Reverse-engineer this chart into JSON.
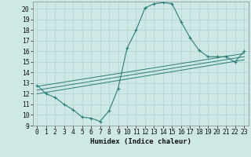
{
  "bg_color": "#cde8e5",
  "line_color": "#2d7d78",
  "grid_color": "#b0d5d2",
  "xlabel": "Humidex (Indice chaleur)",
  "xlabel_fontsize": 6.5,
  "tick_fontsize": 5.8,
  "xlim": [
    -0.5,
    23.5
  ],
  "ylim": [
    9,
    20.7
  ],
  "yticks": [
    9,
    10,
    11,
    12,
    13,
    14,
    15,
    16,
    17,
    18,
    19,
    20
  ],
  "xticks": [
    0,
    1,
    2,
    3,
    4,
    5,
    6,
    7,
    8,
    9,
    10,
    11,
    12,
    13,
    14,
    15,
    16,
    17,
    18,
    19,
    20,
    21,
    22,
    23
  ],
  "main_x": [
    0,
    1,
    2,
    3,
    4,
    5,
    6,
    7,
    8,
    9,
    10,
    11,
    12,
    13,
    14,
    15,
    16,
    17,
    18,
    19,
    20,
    21,
    22,
    23
  ],
  "main_y": [
    12.8,
    12.0,
    11.65,
    11.0,
    10.5,
    9.8,
    9.7,
    9.4,
    10.4,
    12.5,
    16.3,
    18.0,
    20.1,
    20.5,
    20.6,
    20.5,
    18.8,
    17.3,
    16.1,
    15.5,
    15.5,
    15.5,
    15.0,
    16.0
  ],
  "ref_lines": [
    {
      "x": [
        0,
        23
      ],
      "y": [
        12.7,
        15.8
      ]
    },
    {
      "x": [
        0,
        23
      ],
      "y": [
        12.35,
        15.5
      ]
    },
    {
      "x": [
        0,
        23
      ],
      "y": [
        12.0,
        15.2
      ]
    }
  ],
  "spine_color": "#888888"
}
